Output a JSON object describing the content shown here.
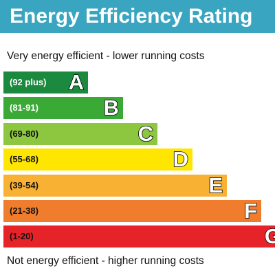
{
  "header": {
    "title": "Energy Efficiency Rating"
  },
  "top_note": "Very energy efficient - lower running costs",
  "bands": [
    {
      "range": "(92 plus)",
      "letter": "A",
      "color": "#1b8a3e",
      "text_color": "#ffffff"
    },
    {
      "range": "(81-91)",
      "letter": "B",
      "color": "#3ba936",
      "text_color": "#ffffff"
    },
    {
      "range": "(69-80)",
      "letter": "C",
      "color": "#8dc63f",
      "text_color": "#111111"
    },
    {
      "range": "(55-68)",
      "letter": "D",
      "color": "#ffe600",
      "text_color": "#111111"
    },
    {
      "range": "(39-54)",
      "letter": "E",
      "color": "#f8b133",
      "text_color": "#111111"
    },
    {
      "range": "(21-38)",
      "letter": "F",
      "color": "#ef7d2d",
      "text_color": "#111111"
    },
    {
      "range": "(1-20)",
      "letter": "G",
      "color": "#e52329",
      "text_color": "#111111"
    }
  ],
  "bottom_note": "Not energy efficient - higher running costs"
}
